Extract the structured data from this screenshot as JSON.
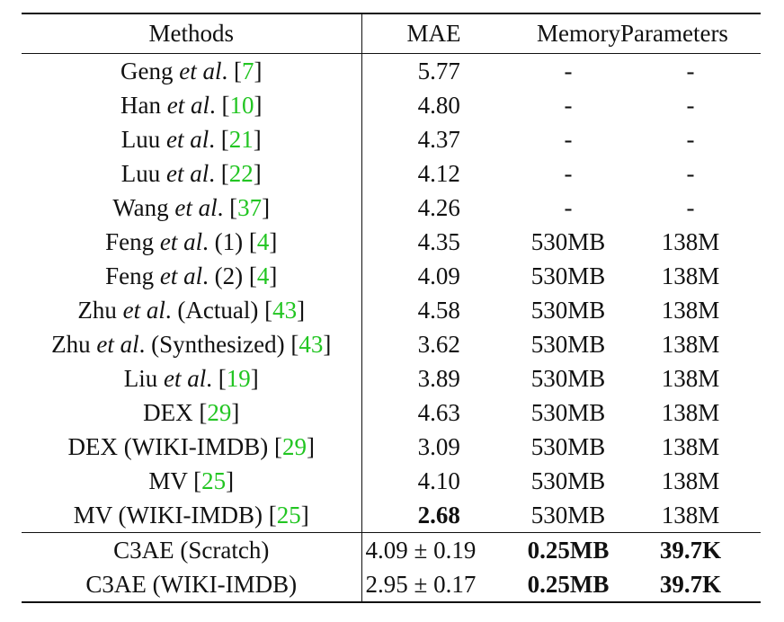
{
  "headers": {
    "methods": "Methods",
    "mae": "MAE",
    "memory": "Memory",
    "parameters": "Parameters"
  },
  "rows": [
    {
      "name": "Geng",
      "etal": "et al",
      "suffix": ".",
      "ref": "7",
      "mae": "5.77",
      "memory": "-",
      "params": "-"
    },
    {
      "name": "Han",
      "etal": "et al",
      "suffix": ".",
      "ref": "10",
      "mae": "4.80",
      "memory": "-",
      "params": "-"
    },
    {
      "name": "Luu",
      "etal": "et al",
      "suffix": ".",
      "ref": "21",
      "mae": "4.37",
      "memory": "-",
      "params": "-"
    },
    {
      "name": "Luu",
      "etal": "et al",
      "suffix": ".",
      "ref": "22",
      "mae": "4.12",
      "memory": "-",
      "params": "-"
    },
    {
      "name": "Wang",
      "etal": "et al",
      "suffix": ".",
      "ref": "37",
      "mae": "4.26",
      "memory": "-",
      "params": "-"
    },
    {
      "name": "Feng",
      "etal": "et al",
      "suffix": ". (1)",
      "ref": "4",
      "mae": "4.35",
      "memory": "530MB",
      "params": "138M"
    },
    {
      "name": "Feng",
      "etal": "et al",
      "suffix": ". (2)",
      "ref": "4",
      "mae": "4.09",
      "memory": "530MB",
      "params": "138M"
    },
    {
      "name": "Zhu",
      "etal": "et al",
      "suffix": ". (Actual)",
      "ref": "43",
      "mae": "4.58",
      "memory": "530MB",
      "params": "138M"
    },
    {
      "name": "Zhu",
      "etal": "et al",
      "suffix": ". (Synthesized)",
      "ref": "43",
      "mae": "3.62",
      "memory": "530MB",
      "params": "138M"
    },
    {
      "name": "Liu",
      "etal": "et al",
      "suffix": ".",
      "ref": "19",
      "mae": "3.89",
      "memory": "530MB",
      "params": "138M"
    },
    {
      "name": "DEX",
      "etal": "",
      "suffix": "",
      "ref": "29",
      "mae": "4.63",
      "memory": "530MB",
      "params": "138M"
    },
    {
      "name": "DEX (WIKI-IMDB)",
      "etal": "",
      "suffix": "",
      "ref": "29",
      "mae": "3.09",
      "memory": "530MB",
      "params": "138M"
    },
    {
      "name": "MV",
      "etal": "",
      "suffix": "",
      "ref": "25",
      "mae": "4.10",
      "memory": "530MB",
      "params": "138M"
    },
    {
      "name": "MV (WIKI-IMDB)",
      "etal": "",
      "suffix": "",
      "ref": "25",
      "mae": "2.68",
      "memory": "530MB",
      "params": "138M",
      "mae_bold": true
    }
  ],
  "footer_rows": [
    {
      "name": "C3AE (Scratch)",
      "mae": "4.09 ± 0.19",
      "memory": "0.25MB",
      "params": "39.7K"
    },
    {
      "name": "C3AE (WIKI-IMDB)",
      "mae": "2.95 ± 0.17",
      "memory": "0.25MB",
      "params": "39.7K"
    }
  ],
  "colors": {
    "reference_link": "#22c522",
    "text": "#111111"
  }
}
